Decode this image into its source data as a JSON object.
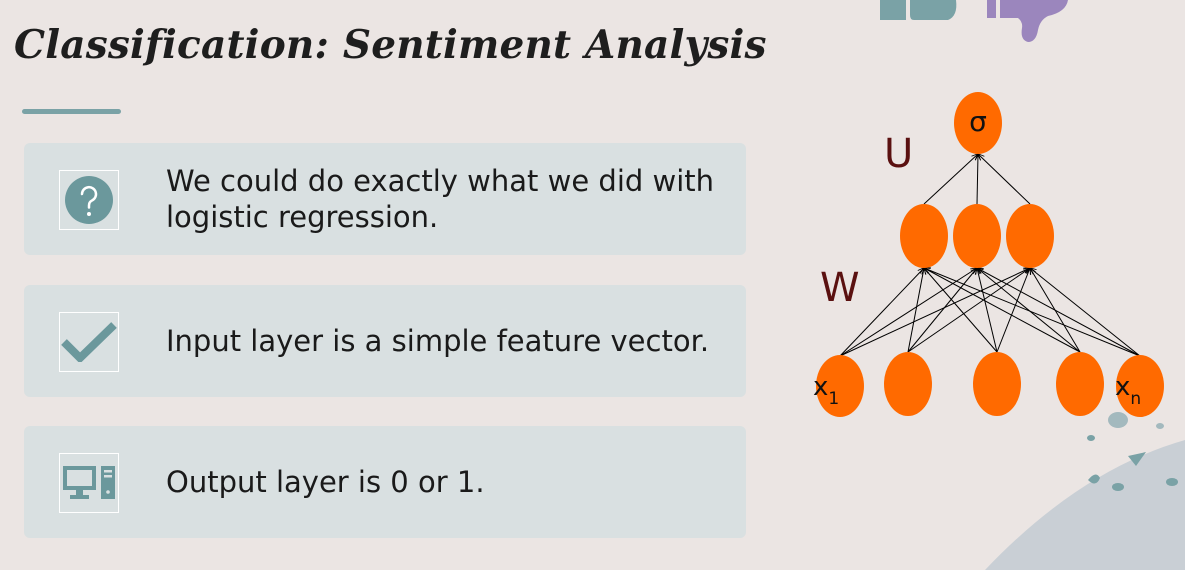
{
  "slide": {
    "title": "Classification: Sentiment Analysis",
    "accent_color": "#7aa2a6"
  },
  "cards": [
    {
      "icon": "question-icon",
      "text": "We could do exactly what we did with logistic regression."
    },
    {
      "icon": "checkmark-icon",
      "text": "Input layer is a simple feature vector."
    },
    {
      "icon": "computer-icon",
      "text": "Output layer is 0 or 1."
    }
  ],
  "network": {
    "output_label": "σ",
    "hidden_weights_label": "U",
    "input_weights_label": "W",
    "input_first_label": "x",
    "input_first_sub": "1",
    "input_last_label": "x",
    "input_last_sub": "n",
    "node_color": "#ff6a00",
    "layers": {
      "input": 5,
      "hidden": 3,
      "output": 1
    }
  }
}
